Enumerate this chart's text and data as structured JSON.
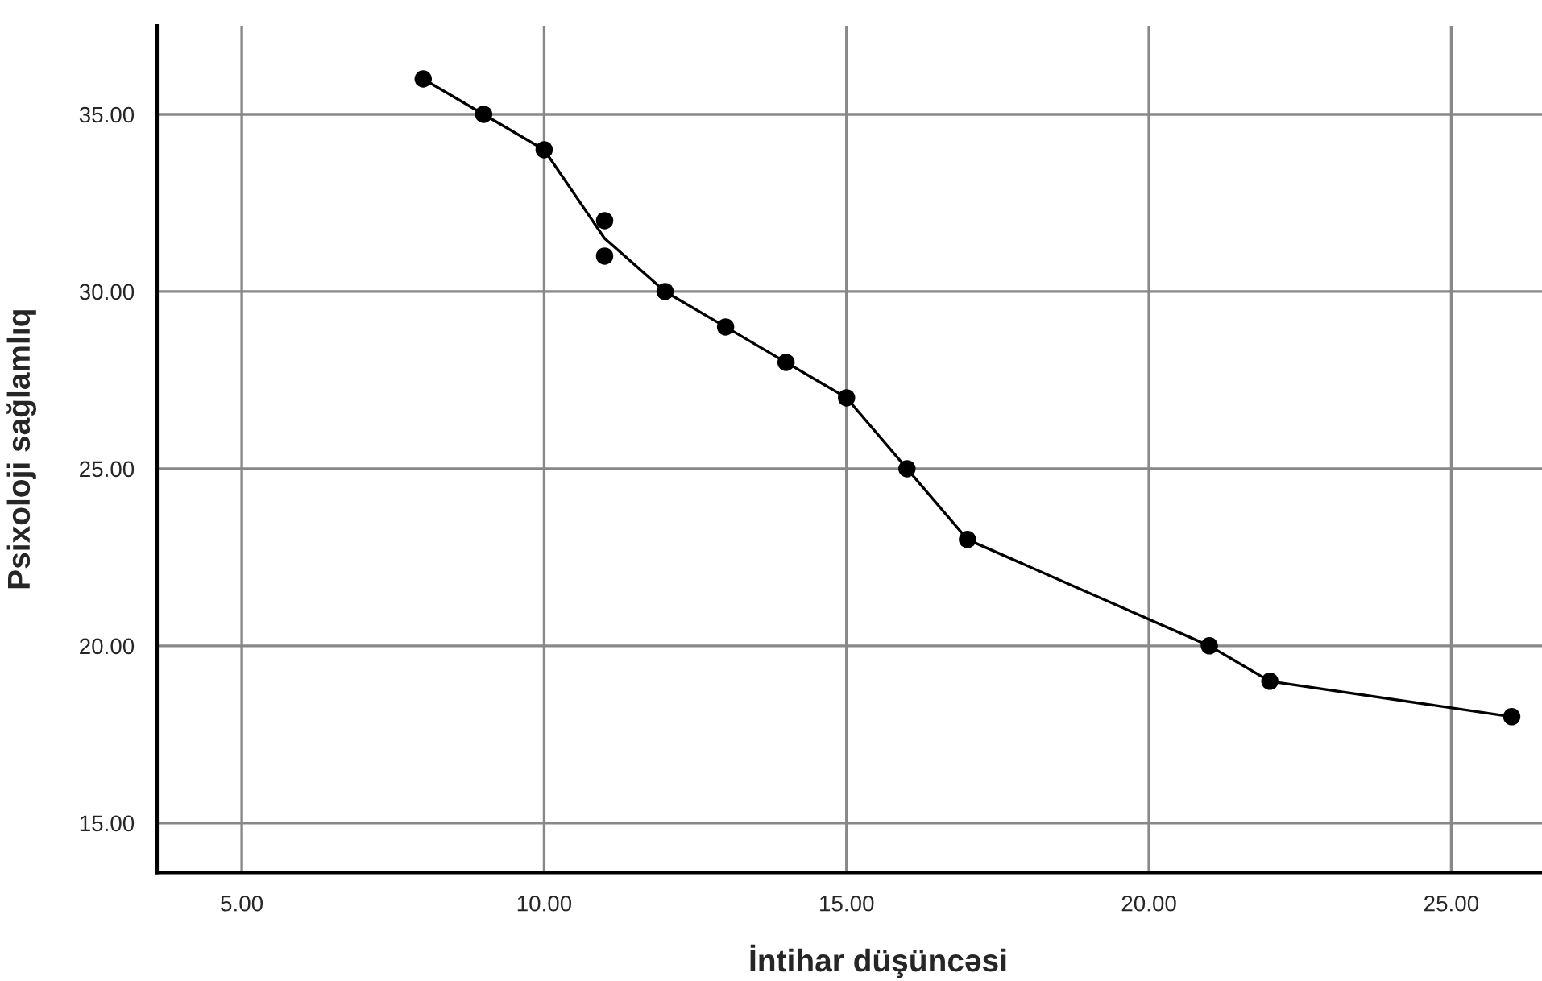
{
  "chart_data": {
    "type": "scatter",
    "xlabel": "İntihar düşüncəsi",
    "ylabel": "Psixoloji sağlamlıq",
    "series": [
      {
        "color": "#000000",
        "marker": "circle",
        "x": [
          8,
          9,
          10,
          11,
          11,
          12,
          13,
          14,
          15,
          16,
          17,
          21,
          22,
          26
        ],
        "values": [
          36,
          35,
          34,
          32,
          31,
          30,
          29,
          28,
          27,
          25,
          23,
          20,
          19,
          18
        ]
      },
      {
        "type": "line",
        "color": "#000000",
        "marker": "none",
        "line_style": "solid",
        "x": [
          8,
          9,
          10,
          11,
          12,
          13,
          14,
          15,
          16,
          17,
          21,
          22,
          26
        ],
        "values": [
          36,
          35,
          34,
          31.5,
          30,
          29,
          28,
          27,
          25,
          23,
          20,
          19,
          18
        ]
      }
    ],
    "xlim": [
      3.6,
      26.5
    ],
    "ylim": [
      13.6,
      37.5
    ],
    "xticks": [
      {
        "value": 5,
        "label": "5.00"
      },
      {
        "value": 10,
        "label": "10.00"
      },
      {
        "value": 15,
        "label": "15.00"
      },
      {
        "value": 20,
        "label": "20.00"
      },
      {
        "value": 25,
        "label": "25.00"
      }
    ],
    "yticks": [
      {
        "value": 15,
        "label": "15.00"
      },
      {
        "value": 20,
        "label": "20.00"
      },
      {
        "value": 25,
        "label": "25.00"
      },
      {
        "value": 30,
        "label": "30.00"
      },
      {
        "value": 35,
        "label": "35.00"
      }
    ],
    "grid": true
  }
}
